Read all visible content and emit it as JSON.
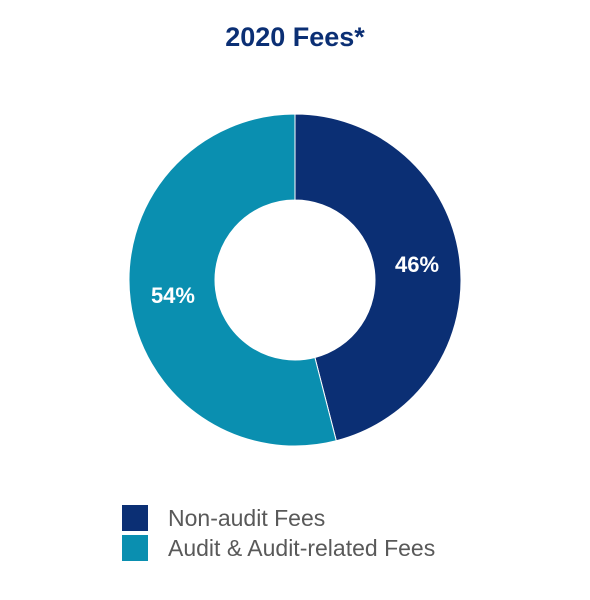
{
  "chart_data": {
    "type": "pie",
    "title": "2020 Fees*",
    "categories": [
      "Non-audit Fees",
      "Audit & Audit-related Fees"
    ],
    "values": [
      46,
      54
    ],
    "value_labels": [
      "46%",
      "54%"
    ],
    "colors": [
      "#0b2f74",
      "#0a8fb0"
    ],
    "donut": true,
    "legend_position": "bottom"
  }
}
